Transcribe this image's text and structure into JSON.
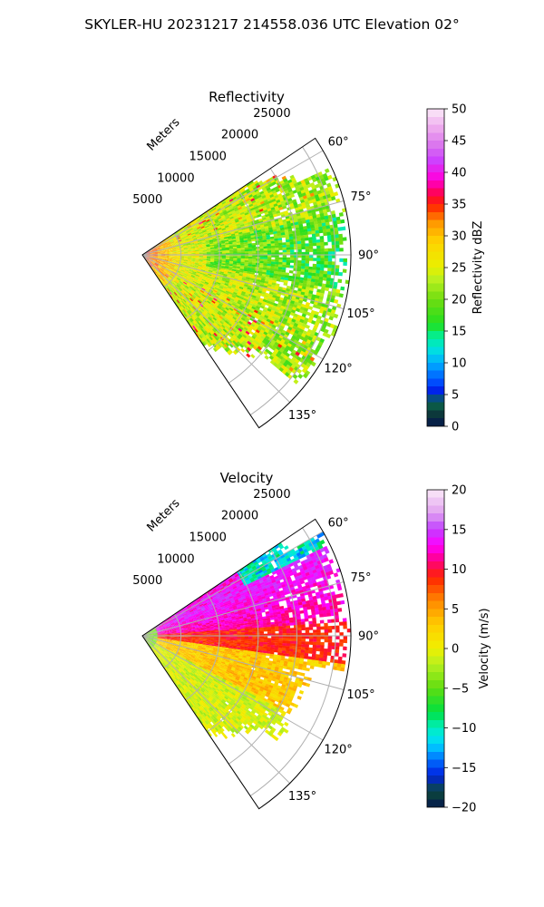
{
  "figure": {
    "suptitle": "SKYLER-HU  20231217  214558.036 UTC Elevation 02°"
  },
  "chart_data": [
    {
      "type": "polar-sector",
      "title": "Reflectivity",
      "range_label": "Meters",
      "range_ticks": [
        5000,
        10000,
        15000,
        20000,
        25000
      ],
      "range_tick_labels": [
        "5000",
        "10000",
        "15000",
        "20000",
        "25000"
      ],
      "range_max": 27000,
      "azimuth_range": [
        56,
        146
      ],
      "azimuth_ticks": [
        60,
        75,
        90,
        105,
        120,
        135
      ],
      "azimuth_tick_labels": [
        "60°",
        "75°",
        "90°",
        "105°",
        "120°",
        "135°"
      ],
      "grid": true,
      "colorbar": {
        "label": "Reflectivity dBZ",
        "min": 0,
        "max": 50,
        "ticks": [
          0,
          5,
          10,
          15,
          20,
          25,
          30,
          35,
          40,
          45,
          50
        ],
        "tick_labels": [
          "0",
          "5",
          "10",
          "15",
          "20",
          "25",
          "30",
          "35",
          "40",
          "45",
          "50"
        ],
        "colormap": [
          {
            "value": 0,
            "color": "#04164d"
          },
          {
            "value": 2,
            "color": "#0c3a3a"
          },
          {
            "value": 4,
            "color": "#0a7050"
          },
          {
            "value": 5,
            "color": "#0010e0"
          },
          {
            "value": 7,
            "color": "#0050ff"
          },
          {
            "value": 10,
            "color": "#00b0ff"
          },
          {
            "value": 12,
            "color": "#00e0e0"
          },
          {
            "value": 14,
            "color": "#00f0a0"
          },
          {
            "value": 16,
            "color": "#20e020"
          },
          {
            "value": 20,
            "color": "#70dd10"
          },
          {
            "value": 23,
            "color": "#b8f020"
          },
          {
            "value": 25,
            "color": "#e8f000"
          },
          {
            "value": 29,
            "color": "#ffd400"
          },
          {
            "value": 32,
            "color": "#ff9900"
          },
          {
            "value": 35,
            "color": "#ff1c00"
          },
          {
            "value": 37,
            "color": "#ff0066"
          },
          {
            "value": 39,
            "color": "#ff00dd"
          },
          {
            "value": 42,
            "color": "#cc44ff"
          },
          {
            "value": 44,
            "color": "#d870ee"
          },
          {
            "value": 47,
            "color": "#eeaaee"
          },
          {
            "value": 50,
            "color": "#fbeaf8"
          }
        ]
      }
    },
    {
      "type": "polar-sector",
      "title": "Velocity",
      "range_label": "Meters",
      "range_ticks": [
        5000,
        10000,
        15000,
        20000,
        25000
      ],
      "range_tick_labels": [
        "5000",
        "10000",
        "15000",
        "20000",
        "25000"
      ],
      "range_max": 27000,
      "azimuth_range": [
        56,
        146
      ],
      "azimuth_ticks": [
        60,
        75,
        90,
        105,
        120,
        135
      ],
      "azimuth_tick_labels": [
        "60°",
        "75°",
        "90°",
        "105°",
        "120°",
        "135°"
      ],
      "grid": true,
      "colorbar": {
        "label": "Velocity (m/s)",
        "min": -20,
        "max": 20,
        "ticks": [
          -20,
          -15,
          -10,
          -5,
          0,
          5,
          10,
          15,
          20
        ],
        "tick_labels": [
          "−20",
          "−15",
          "−10",
          "−5",
          "0",
          "5",
          "10",
          "15",
          "20"
        ],
        "colormap": [
          {
            "value": -20,
            "color": "#04164d"
          },
          {
            "value": -18,
            "color": "#0c4a3a"
          },
          {
            "value": -16,
            "color": "#0020e0"
          },
          {
            "value": -14,
            "color": "#0070ff"
          },
          {
            "value": -12,
            "color": "#00d8ff"
          },
          {
            "value": -10,
            "color": "#00f0c0"
          },
          {
            "value": -8,
            "color": "#00e040"
          },
          {
            "value": -5,
            "color": "#60dd10"
          },
          {
            "value": -2,
            "color": "#b8f020"
          },
          {
            "value": 0,
            "color": "#f0f000"
          },
          {
            "value": 3,
            "color": "#ffcc00"
          },
          {
            "value": 6,
            "color": "#ff8800"
          },
          {
            "value": 9,
            "color": "#ff2200"
          },
          {
            "value": 11,
            "color": "#ff0080"
          },
          {
            "value": 13,
            "color": "#ff00ff"
          },
          {
            "value": 15,
            "color": "#c040ff"
          },
          {
            "value": 17,
            "color": "#e0a0f0"
          },
          {
            "value": 20,
            "color": "#fbeaf8"
          }
        ]
      }
    }
  ]
}
